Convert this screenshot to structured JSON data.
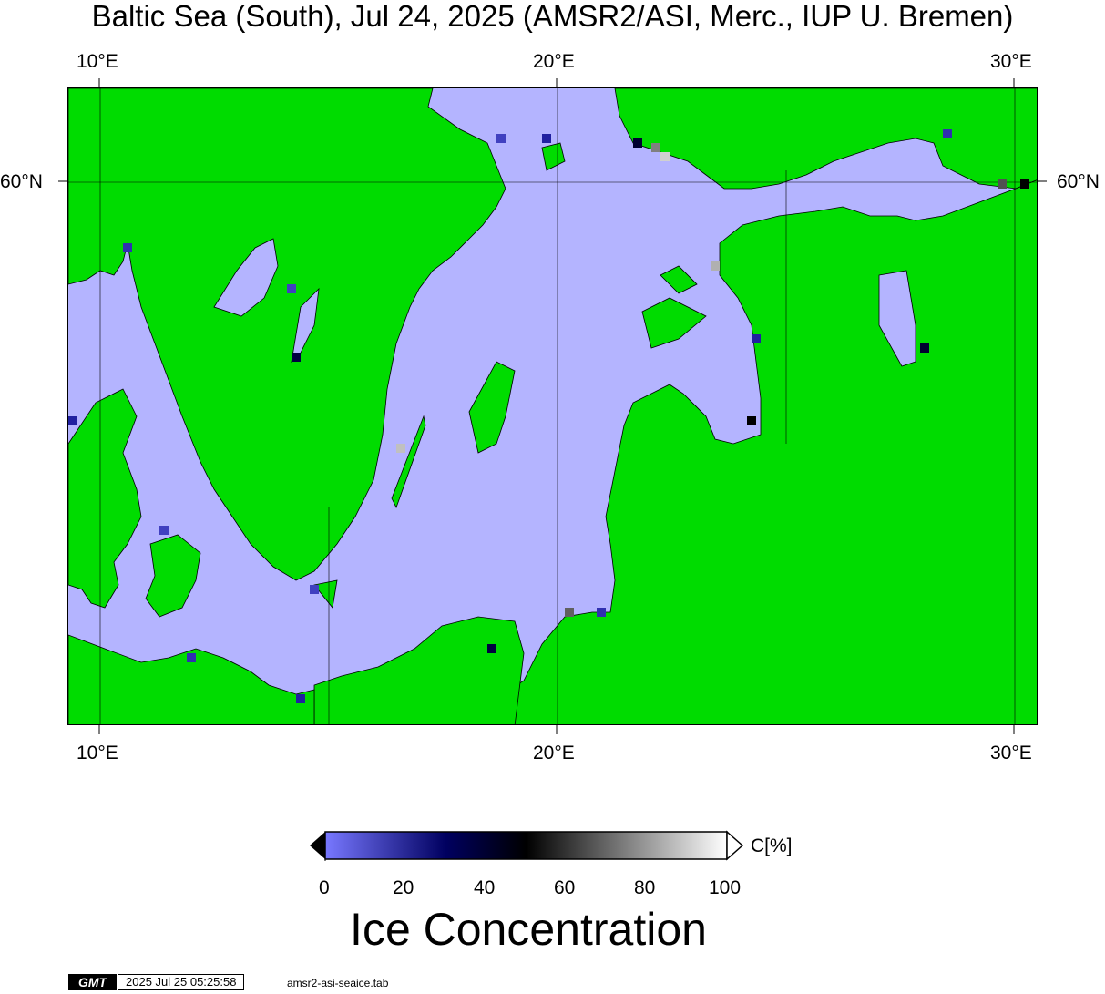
{
  "title": "Baltic Sea (South), Jul 24, 2025 (AMSR2/ASI, Merc., IUP U. Bremen)",
  "axes": {
    "lon_ticks": [
      "10°E",
      "20°E",
      "30°E"
    ],
    "lat_ticks": [
      "60°N"
    ]
  },
  "colors": {
    "land": "#00dc00",
    "open_water": "#b4b4ff",
    "coast": "#000000"
  },
  "colorbar": {
    "unit_label": "C[%]",
    "ticks": [
      "0",
      "20",
      "40",
      "60",
      "80",
      "100"
    ],
    "title": "Ice Concentration",
    "stops": [
      "#7878ff",
      "#000060",
      "#000000",
      "#ffffff"
    ]
  },
  "footer": {
    "logo": "GMT",
    "timestamp": "2025 Jul 25 05:25:58",
    "command": "amsr2-asi-seaice.tab"
  }
}
